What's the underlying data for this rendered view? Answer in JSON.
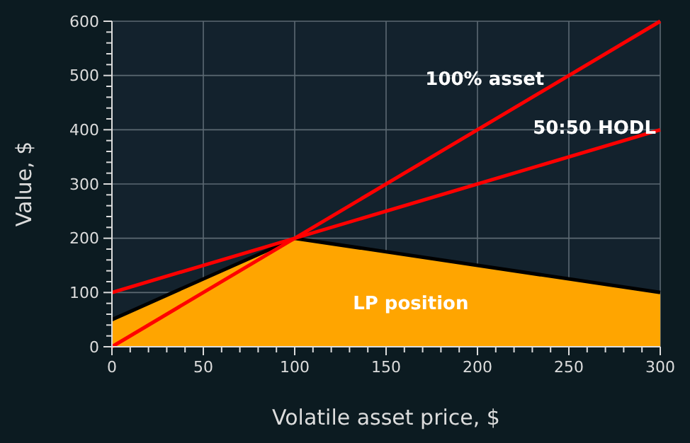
{
  "chart_data": {
    "type": "line",
    "xlabel": "Volatile asset price, $",
    "ylabel": "Value, $",
    "xlim": [
      0,
      300
    ],
    "ylim": [
      0,
      600
    ],
    "xticks": [
      0,
      {
        "value": 10,
        "label": null
      },
      {
        "value": 20,
        "label": null
      },
      {
        "value": 30,
        "label": null
      },
      {
        "value": 40,
        "label": null
      },
      50,
      {
        "value": 60,
        "label": null
      },
      {
        "value": 70,
        "label": null
      },
      {
        "value": 80,
        "label": null
      },
      {
        "value": 90,
        "label": null
      },
      100,
      {
        "value": 110,
        "label": null
      },
      {
        "value": 120,
        "label": null
      },
      {
        "value": 130,
        "label": null
      },
      {
        "value": 140,
        "label": null
      },
      150,
      {
        "value": 160,
        "label": null
      },
      {
        "value": 170,
        "label": null
      },
      {
        "value": 180,
        "label": null
      },
      {
        "value": 190,
        "label": null
      },
      200,
      {
        "value": 210,
        "label": null
      },
      {
        "value": 220,
        "label": null
      },
      {
        "value": 230,
        "label": null
      },
      {
        "value": 240,
        "label": null
      },
      250,
      {
        "value": 260,
        "label": null
      },
      {
        "value": 270,
        "label": null
      },
      {
        "value": 280,
        "label": null
      },
      {
        "value": 290,
        "label": null
      },
      300
    ],
    "yticks": [
      0,
      {
        "value": 20,
        "label": null
      },
      {
        "value": 40,
        "label": null
      },
      {
        "value": 60,
        "label": null
      },
      {
        "value": 80,
        "label": null
      },
      100,
      {
        "value": 120,
        "label": null
      },
      {
        "value": 140,
        "label": null
      },
      {
        "value": 160,
        "label": null
      },
      {
        "value": 180,
        "label": null
      },
      200,
      {
        "value": 220,
        "label": null
      },
      {
        "value": 240,
        "label": null
      },
      {
        "value": 260,
        "label": null
      },
      {
        "value": 280,
        "label": null
      },
      300,
      {
        "value": 320,
        "label": null
      },
      {
        "value": 340,
        "label": null
      },
      {
        "value": 360,
        "label": null
      },
      {
        "value": 380,
        "label": null
      },
      400,
      {
        "value": 420,
        "label": null
      },
      {
        "value": 440,
        "label": null
      },
      {
        "value": 460,
        "label": null
      },
      {
        "value": 480,
        "label": null
      },
      500,
      {
        "value": 520,
        "label": null
      },
      {
        "value": 540,
        "label": null
      },
      {
        "value": 560,
        "label": null
      },
      {
        "value": 580,
        "label": null
      },
      600
    ],
    "grid": true,
    "series": [
      {
        "name": "LP position",
        "type": "area",
        "color": "#ffa500",
        "x": [
          0,
          100,
          300
        ],
        "values": [
          50,
          200,
          100
        ]
      },
      {
        "name": "100% asset",
        "color": "#ff0000",
        "x": [
          0,
          300
        ],
        "values": [
          0,
          600
        ]
      },
      {
        "name": "50:50 HODL",
        "color": "#ff0000",
        "x": [
          0,
          300
        ],
        "values": [
          100,
          400
        ]
      }
    ]
  }
}
